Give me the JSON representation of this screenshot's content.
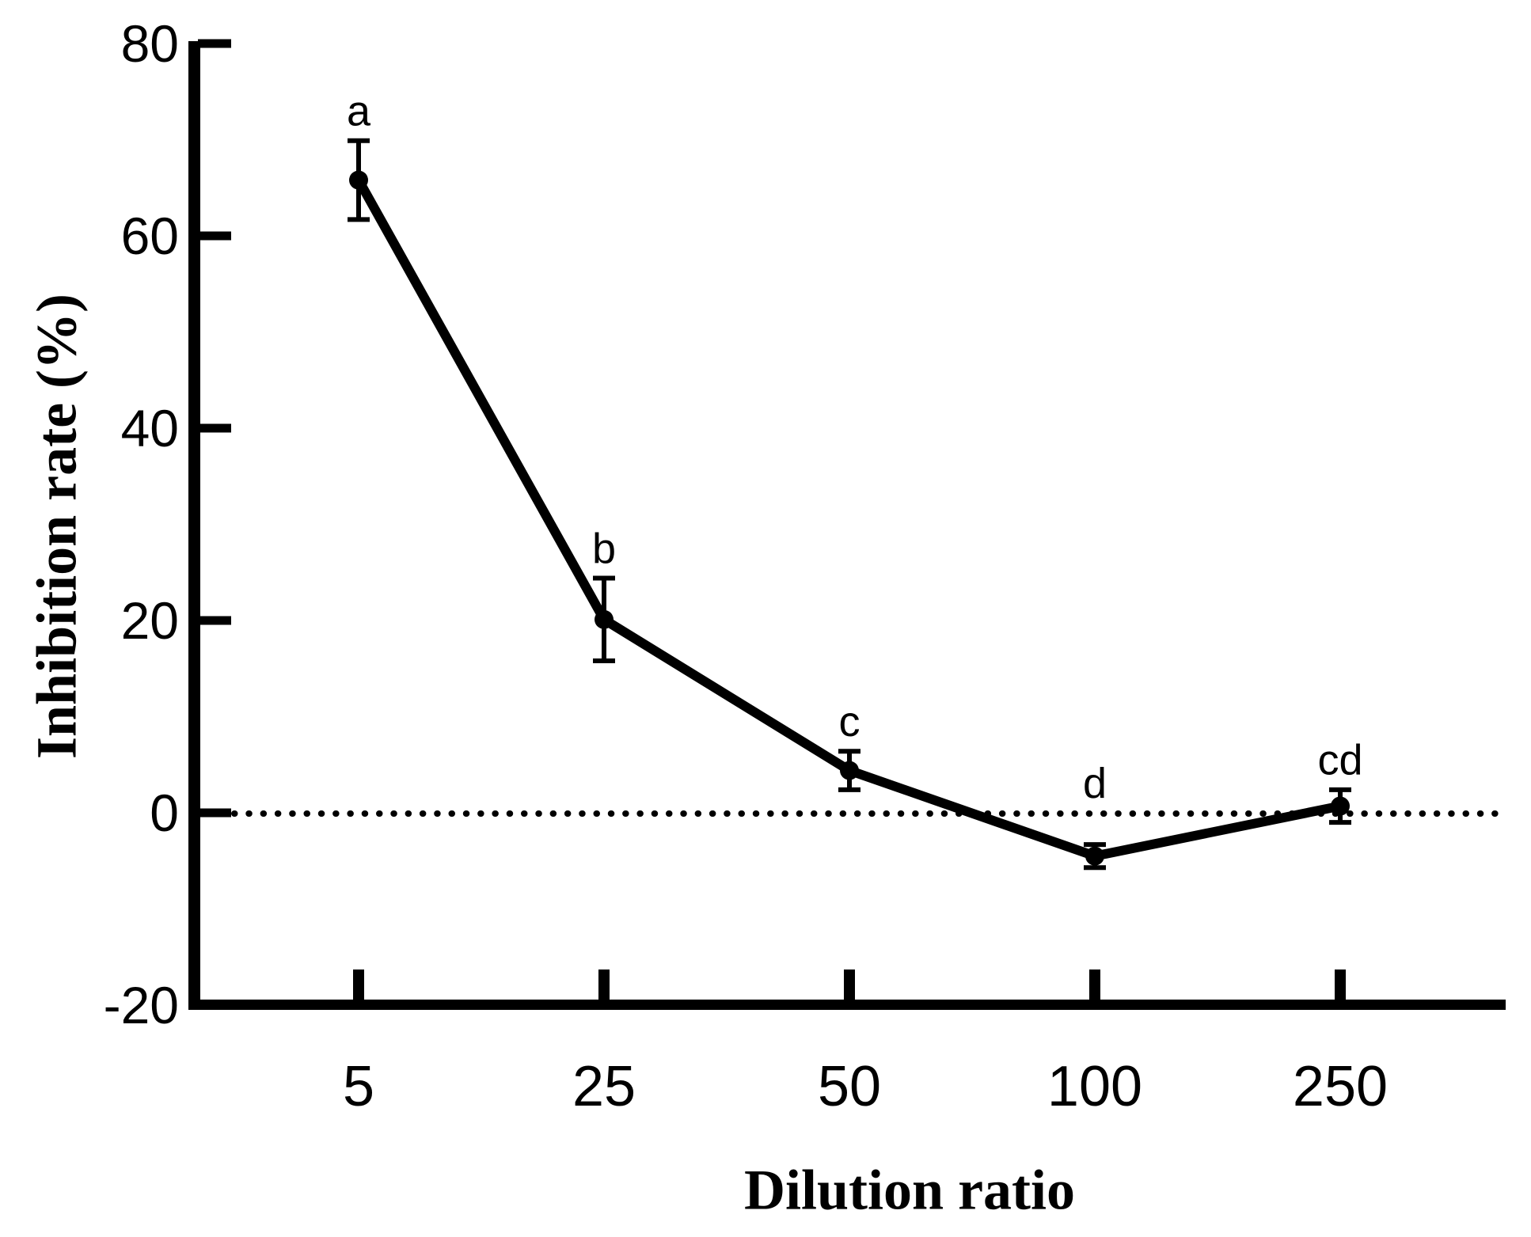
{
  "figure": {
    "background": "#ffffff",
    "ink_color": "#000000"
  },
  "chart_data": {
    "type": "line",
    "title": "",
    "xlabel": "Dilution ratio",
    "ylabel": "Inhibition rate (%)",
    "categories": [
      "5",
      "25",
      "50",
      "100",
      "250"
    ],
    "series": [
      {
        "name": "Inhibition rate",
        "values": [
          65.8,
          20.1,
          4.4,
          -4.5,
          0.7
        ],
        "errors": [
          4.1,
          4.3,
          2.0,
          1.2,
          1.7
        ],
        "point_labels": [
          "a",
          "b",
          "c",
          "d",
          "cd"
        ]
      }
    ],
    "ylim": [
      -20,
      80
    ],
    "yticks": [
      80,
      60,
      40,
      20,
      0,
      -20
    ],
    "reference_line_y": 0,
    "reference_line_style": "dotted",
    "grid": false,
    "legend": "none",
    "marker": "filled-circle",
    "line_color": "#000000"
  }
}
